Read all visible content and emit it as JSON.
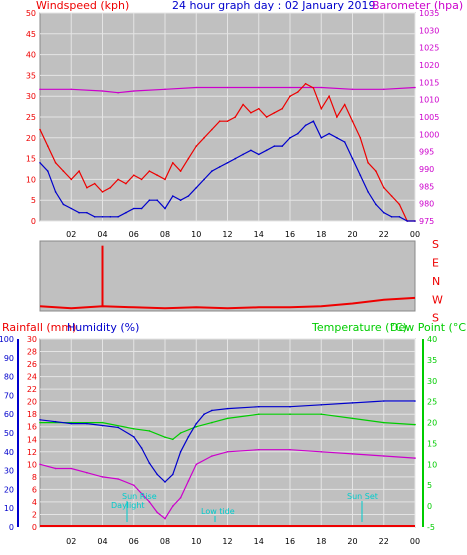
{
  "header": {
    "windspeed_label": "Windspeed (kph)",
    "title": "24 hour graph day : 02 January 2019",
    "barometer_label": "Barometer (hpa)"
  },
  "colors": {
    "red": "#ee0000",
    "blue": "#0000cc",
    "magenta": "#cc00cc",
    "green": "#00cc00",
    "cyan": "#00cccc",
    "panel_bg": "#c0c0c0",
    "grid": "#e4e4e4"
  },
  "chart_data": [
    {
      "type": "line",
      "name": "wind-and-pressure",
      "x_tick_labels": [
        "02",
        "04",
        "06",
        "08",
        "10",
        "12",
        "14",
        "16",
        "18",
        "20",
        "22",
        "00"
      ],
      "xlim": [
        0,
        24
      ],
      "left_axis": {
        "label": "Windspeed (kph)",
        "ylim": [
          0,
          50
        ],
        "ticks": [
          0,
          5,
          10,
          15,
          20,
          25,
          30,
          35,
          40,
          45,
          50
        ]
      },
      "right_axis": {
        "label": "Barometer (hpa)",
        "ylim": [
          975,
          1035
        ],
        "ticks": [
          975,
          980,
          985,
          990,
          995,
          1000,
          1005,
          1010,
          1015,
          1020,
          1025,
          1030,
          1035
        ]
      },
      "series": [
        {
          "axis": "right",
          "color": "#cc00cc",
          "x": [
            0,
            2,
            4,
            5,
            6,
            8,
            10,
            12,
            14,
            16,
            18,
            20,
            22,
            24
          ],
          "values": [
            1013,
            1013,
            1012.5,
            1012,
            1012.5,
            1013,
            1013.5,
            1013.5,
            1013.5,
            1013.5,
            1013.5,
            1013,
            1013,
            1013.5
          ]
        },
        {
          "axis": "left",
          "color": "#ee0000",
          "x": [
            0,
            0.5,
            1,
            1.5,
            2,
            2.5,
            3,
            3.5,
            4,
            4.5,
            5,
            5.5,
            6,
            6.5,
            7,
            7.5,
            8,
            8.5,
            9,
            9.5,
            10,
            10.5,
            11,
            11.5,
            12,
            12.5,
            13,
            13.5,
            14,
            14.5,
            15,
            15.5,
            16,
            16.5,
            17,
            17.5,
            18,
            18.5,
            19,
            19.5,
            20,
            20.5,
            21,
            21.5,
            22,
            22.5,
            23,
            23.5,
            24
          ],
          "values": [
            22,
            18,
            14,
            12,
            10,
            12,
            8,
            9,
            7,
            8,
            10,
            9,
            11,
            10,
            12,
            11,
            10,
            14,
            12,
            15,
            18,
            20,
            22,
            24,
            24,
            25,
            28,
            26,
            27,
            25,
            26,
            27,
            30,
            31,
            33,
            32,
            27,
            30,
            25,
            28,
            24,
            20,
            14,
            12,
            8,
            6,
            4,
            0,
            0
          ]
        },
        {
          "axis": "left",
          "color": "#0000cc",
          "x": [
            0,
            0.5,
            1,
            1.5,
            2,
            2.5,
            3,
            3.5,
            4,
            4.5,
            5,
            5.5,
            6,
            6.5,
            7,
            7.5,
            8,
            8.5,
            9,
            9.5,
            10,
            10.5,
            11,
            11.5,
            12,
            12.5,
            13,
            13.5,
            14,
            14.5,
            15,
            15.5,
            16,
            16.5,
            17,
            17.5,
            18,
            18.5,
            19,
            19.5,
            20,
            20.5,
            21,
            21.5,
            22,
            22.5,
            23,
            23.5,
            24
          ],
          "values": [
            14,
            12,
            7,
            4,
            3,
            2,
            2,
            1,
            1,
            1,
            1,
            2,
            3,
            3,
            5,
            5,
            3,
            6,
            5,
            6,
            8,
            10,
            12,
            13,
            14,
            15,
            16,
            17,
            16,
            17,
            18,
            18,
            20,
            21,
            23,
            24,
            20,
            21,
            20,
            19,
            15,
            11,
            7,
            4,
            2,
            1,
            1,
            0,
            0
          ]
        }
      ]
    },
    {
      "type": "line",
      "name": "wind-direction",
      "y_labels": [
        "S",
        "E",
        "N",
        "W",
        "S"
      ],
      "series": [
        {
          "color": "#ee0000",
          "x": [
            0,
            2,
            4,
            6,
            8,
            10,
            12,
            14,
            16,
            18,
            20,
            22,
            24
          ],
          "values": [
            70,
            72,
            70,
            71,
            72,
            71,
            72,
            71,
            71,
            70,
            67,
            63,
            61
          ],
          "spikes": [
            {
              "x": 4,
              "value": 5
            }
          ]
        }
      ]
    },
    {
      "type": "line",
      "name": "rain-humidity-temperature",
      "header_labels": {
        "rainfall": "Rainfall (mm)",
        "humidity": "Humidity (%)",
        "temperature": "Temperature (°C)",
        "dewpoint": "Dew Point (°C)"
      },
      "x_tick_labels": [
        "02",
        "04",
        "06",
        "08",
        "10",
        "12",
        "14",
        "16",
        "18",
        "20",
        "22",
        "00"
      ],
      "xlim": [
        0,
        24
      ],
      "humidity_axis": {
        "ylim": [
          0,
          100
        ],
        "ticks": [
          0,
          10,
          20,
          30,
          40,
          50,
          60,
          70,
          80,
          90,
          100
        ]
      },
      "rainfall_axis": {
        "ylim": [
          0,
          30
        ],
        "ticks": [
          0,
          2,
          4,
          6,
          8,
          10,
          12,
          14,
          16,
          18,
          20,
          22,
          24,
          26,
          28,
          30
        ]
      },
      "temperature_axis": {
        "ylim": [
          -5,
          40
        ],
        "ticks": [
          -5,
          0,
          5,
          10,
          15,
          20,
          25,
          30,
          35,
          40
        ]
      },
      "annotations": [
        "Sun Rise",
        "Daylight",
        "Sun Set",
        "Low tide"
      ],
      "series": [
        {
          "axis": "humidity",
          "color": "#0000cc",
          "x": [
            0,
            1,
            2,
            3,
            4,
            5,
            6,
            6.5,
            7,
            7.5,
            8,
            8.5,
            9,
            9.5,
            10,
            10.5,
            11,
            12,
            14,
            16,
            18,
            20,
            22,
            24
          ],
          "values": [
            57,
            56,
            55,
            55,
            54,
            53,
            48,
            42,
            34,
            28,
            24,
            28,
            40,
            48,
            55,
            60,
            62,
            63,
            64,
            64,
            65,
            66,
            67,
            67
          ]
        },
        {
          "axis": "temperature",
          "color": "#00cc00",
          "x": [
            0,
            2,
            4,
            6,
            7,
            8,
            8.5,
            9,
            10,
            11,
            12,
            14,
            16,
            18,
            20,
            22,
            24
          ],
          "values": [
            20,
            20,
            20,
            18.5,
            18,
            16.5,
            16,
            17.5,
            19,
            20,
            21,
            22,
            22,
            22,
            21,
            20,
            19.5
          ]
        },
        {
          "axis": "temperature",
          "color": "#cc00cc",
          "x": [
            0,
            1,
            2,
            3,
            4,
            5,
            6,
            6.5,
            7,
            7.5,
            8,
            8.5,
            9,
            9.5,
            10,
            11,
            12,
            14,
            16,
            18,
            20,
            22,
            24
          ],
          "values": [
            10,
            9,
            9,
            8,
            7,
            6.5,
            5,
            3,
            1,
            -1.5,
            -3,
            0,
            2,
            6,
            10,
            12,
            13,
            13.5,
            13.5,
            13,
            12.5,
            12,
            11.5
          ]
        }
      ]
    }
  ]
}
